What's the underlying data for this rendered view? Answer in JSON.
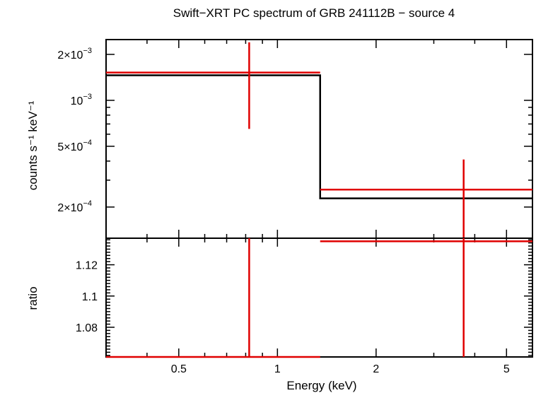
{
  "chart_data": {
    "type": "line",
    "title": "Swift−XRT PC spectrum of GRB 241112B − source 4",
    "xlabel": "Energy (keV)",
    "x_scale": "log",
    "xlim": [
      0.3,
      6.0
    ],
    "x_ticks": [
      {
        "value": 0.5,
        "label": "0.5"
      },
      {
        "value": 1,
        "label": "1"
      },
      {
        "value": 2,
        "label": "2"
      },
      {
        "value": 5,
        "label": "5"
      }
    ],
    "panels": [
      {
        "name": "spectrum",
        "ylabel": "counts s⁻¹ keV⁻¹",
        "y_scale": "log",
        "ylim": [
          0.000125,
          0.0025
        ],
        "y_ticks": [
          {
            "value": 0.0002,
            "mantissa": "2×10",
            "exp": "−4"
          },
          {
            "value": 0.0005,
            "mantissa": "5×10",
            "exp": "−4"
          },
          {
            "value": 0.001,
            "mantissa": "10",
            "exp": "−3"
          },
          {
            "value": 0.002,
            "mantissa": "2×10",
            "exp": "−3"
          }
        ],
        "data": [
          {
            "x": 0.82,
            "xlo": 0.3,
            "xhi": 1.35,
            "y": 0.00152,
            "ylo": 0.00065,
            "yhi": 0.0024
          },
          {
            "x": 3.7,
            "xlo": 1.35,
            "xhi": 6.0,
            "y": 0.00026,
            "ylo": 0.000125,
            "yhi": 0.00041
          }
        ],
        "model": [
          {
            "xlo": 0.3,
            "xhi": 1.35,
            "y": 0.00146
          },
          {
            "xlo": 1.35,
            "xhi": 6.0,
            "y": 0.000228
          }
        ],
        "colors": {
          "data": "#e00000",
          "model": "#000000"
        }
      },
      {
        "name": "ratio",
        "ylabel": "ratio",
        "y_scale": "linear",
        "ylim": [
          1.061,
          1.137
        ],
        "y_ticks": [
          {
            "value": 1.08,
            "label": "1.08"
          },
          {
            "value": 1.1,
            "label": "1.1"
          },
          {
            "value": 1.12,
            "label": "1.12"
          }
        ],
        "data": [
          {
            "x": 0.82,
            "xlo": 0.3,
            "xhi": 1.35,
            "y": 1.061,
            "ylo": 1.061,
            "yhi": 1.137
          },
          {
            "x": 3.7,
            "xlo": 1.35,
            "xhi": 6.0,
            "y": 1.135,
            "ylo": 1.061,
            "yhi": 1.137
          }
        ],
        "colors": {
          "data": "#e00000"
        }
      }
    ]
  }
}
